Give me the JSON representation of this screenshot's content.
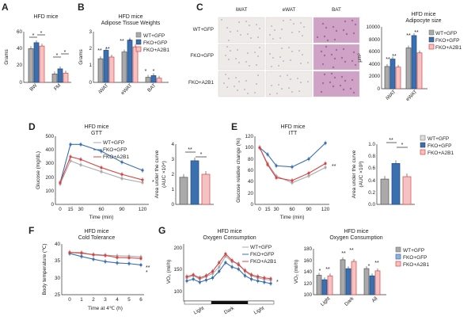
{
  "figure": {
    "panel_labels": [
      "A",
      "B",
      "C",
      "D",
      "E",
      "F",
      "G"
    ],
    "colors": {
      "wt": "#aaaaaa",
      "fko": "#3a6fb0",
      "a2b1": "#d64545",
      "tissue_pink": "#cfa3c6",
      "tissue_pale": "#eeeae8"
    },
    "sig": {
      "one": "*",
      "two": "**"
    },
    "sig_labels": {
      "star": "*",
      "dstar": "**"
    }
  },
  "legend": {
    "wt": "WT+GFP",
    "fko": "FKO+GFP",
    "a2b1": "FKO+A2B1"
  },
  "panelA": {
    "title": "HFD mice",
    "ylabel": "Grams",
    "yticks": [
      "0",
      "20",
      "40",
      "60"
    ]
  },
  "panelB": {
    "title": "HFD mice",
    "subtitle": "Adipose Tissue Weights",
    "ylabel": "Grams",
    "yticks": [
      "0",
      "1",
      "2",
      "3"
    ]
  },
  "panelC": {
    "col_labels": [
      "iWAT",
      "eWAT",
      "BAT"
    ],
    "row_labels": [
      "WT+GFP",
      "FKO+GFP",
      "FKO+A2B1"
    ],
    "chart_title": "HFD mice",
    "chart_subtitle": "Adipocyte size",
    "ylabel": "μm²",
    "yticks": [
      "0",
      "2000",
      "4000",
      "6000",
      "8000",
      "10000"
    ]
  },
  "panelD": {
    "title": "HFD mice",
    "subtitle": "GTT",
    "ylabel": "Glucose (mg/dL)",
    "xlabel": "Time (min)",
    "yticks": [
      "0",
      "100",
      "200",
      "300",
      "400",
      "500"
    ],
    "xticks": [
      "0",
      "15",
      "30",
      "60",
      "90",
      "120"
    ],
    "bar_ylabel": "Area under the curve",
    "bar_ylabel2": "(AUC ×10⁴)",
    "bar_yticks": [
      "0",
      "1",
      "2",
      "3",
      "4"
    ]
  },
  "panelE": {
    "title": "HFD mice",
    "subtitle": "ITT",
    "ylabel": "Glucose relative change (%)",
    "xlabel": "Time (min)",
    "yticks": [
      "0",
      "20",
      "40",
      "60",
      "80",
      "100",
      "120"
    ],
    "xticks": [
      "0",
      "15",
      "30",
      "60",
      "90",
      "120"
    ],
    "bar_ylabel": "Area under the curve",
    "bar_ylabel2": "(AUC ×10³)",
    "bar_yticks": [
      "0.0",
      "0.2",
      "0.4",
      "0.6",
      "0.8",
      "1.0"
    ]
  },
  "panelF": {
    "title": "HFD mice",
    "subtitle": "Cold Tolerance",
    "ylabel": "Body temperature (℃)",
    "xlabel": "Time at 4℃ (h)",
    "yticks": [
      "25",
      "30",
      "35",
      "40"
    ],
    "xticks": [
      "0",
      "1",
      "2",
      "3",
      "4",
      "5",
      "6"
    ]
  },
  "panelG": {
    "title": "HFD mice",
    "subtitle": "Oxygen Consumption",
    "ylabel": "VO₂ (ml/h)",
    "yticks": [
      "100",
      "150",
      "200"
    ],
    "phases": [
      "Light",
      "Dark",
      "Light"
    ],
    "bar_title": "HFD mice",
    "bar_subtitle": "Oxygen Consumption",
    "bar_ylabel": "VO₂ (ml/h)",
    "bar_yticks": [
      "100",
      "120",
      "140",
      "160",
      "180"
    ],
    "bar_categories": [
      "Light",
      "Dark",
      "All"
    ]
  },
  "chart_data": [
    {
      "type": "bar",
      "panel": "A",
      "categories": [
        "BW",
        "FM"
      ],
      "ylim": [
        0,
        60
      ],
      "series": [
        {
          "name": "WT+GFP",
          "values": [
            40,
            10
          ]
        },
        {
          "name": "FKO+GFP",
          "values": [
            47,
            16
          ]
        },
        {
          "name": "FKO+A2B1",
          "values": [
            43,
            11
          ]
        }
      ]
    },
    {
      "type": "bar",
      "panel": "B",
      "categories": [
        "iWAT",
        "eWAT",
        "BAT"
      ],
      "ylim": [
        0,
        3
      ],
      "series": [
        {
          "name": "WT+GFP",
          "values": [
            1.4,
            1.8,
            0.3
          ]
        },
        {
          "name": "FKO+GFP",
          "values": [
            1.9,
            2.5,
            0.4
          ]
        },
        {
          "name": "FKO+A2B1",
          "values": [
            1.5,
            2.1,
            0.25
          ]
        }
      ]
    },
    {
      "type": "bar",
      "panel": "C",
      "categories": [
        "iWAT",
        "eWAT"
      ],
      "ylim": [
        0,
        10000
      ],
      "series": [
        {
          "name": "WT+GFP",
          "values": [
            3600,
            6600
          ]
        },
        {
          "name": "FKO+GFP",
          "values": [
            4800,
            8600
          ]
        },
        {
          "name": "FKO+A2B1",
          "values": [
            3500,
            5800
          ]
        }
      ]
    },
    {
      "type": "line",
      "panel": "D",
      "x": [
        0,
        15,
        30,
        60,
        90,
        120
      ],
      "ylim": [
        0,
        500
      ],
      "series": [
        {
          "name": "WT+GFP",
          "values": [
            150,
            320,
            290,
            240,
            190,
            160
          ]
        },
        {
          "name": "FKO+GFP",
          "values": [
            160,
            440,
            440,
            390,
            310,
            250
          ]
        },
        {
          "name": "FKO+A2B1",
          "values": [
            160,
            350,
            330,
            270,
            220,
            180
          ]
        }
      ]
    },
    {
      "type": "bar",
      "panel": "D-AUC",
      "categories": [
        "WT+GFP",
        "FKO+GFP",
        "FKO+A2B1"
      ],
      "ylim": [
        0,
        4
      ],
      "values": [
        1.8,
        2.9,
        2.0
      ]
    },
    {
      "type": "line",
      "panel": "E",
      "x": [
        0,
        15,
        30,
        60,
        90,
        120
      ],
      "ylim": [
        0,
        120
      ],
      "series": [
        {
          "name": "WT+GFP",
          "values": [
            100,
            72,
            50,
            38,
            50,
            65
          ]
        },
        {
          "name": "FKO+GFP",
          "values": [
            100,
            88,
            68,
            66,
            80,
            108
          ]
        },
        {
          "name": "FKO+A2B1",
          "values": [
            100,
            70,
            47,
            42,
            55,
            72
          ]
        }
      ]
    },
    {
      "type": "bar",
      "panel": "E-AUC",
      "categories": [
        "WT+GFP",
        "FKO+GFP",
        "FKO+A2B1"
      ],
      "ylim": [
        0,
        1.0
      ],
      "values": [
        0.42,
        0.68,
        0.46
      ]
    },
    {
      "type": "line",
      "panel": "F",
      "x": [
        0,
        1,
        2,
        3,
        4,
        5,
        6
      ],
      "ylim": [
        25,
        40
      ],
      "series": [
        {
          "name": "WT+GFP",
          "values": [
            37.5,
            37.2,
            36.9,
            36.7,
            36.5,
            36.4,
            36.2
          ]
        },
        {
          "name": "FKO+GFP",
          "values": [
            37.2,
            36.3,
            35.5,
            34.8,
            34.4,
            34.2,
            33.8
          ]
        },
        {
          "name": "FKO+A2B1",
          "values": [
            37.5,
            37.4,
            36.8,
            36.6,
            36.0,
            35.9,
            35.7
          ]
        }
      ]
    },
    {
      "type": "line",
      "panel": "G",
      "ylim": [
        100,
        200
      ],
      "series": [
        {
          "name": "WT+GFP",
          "values": [
            135,
            140,
            132,
            138,
            145,
            160,
            185,
            172,
            168,
            150,
            140,
            135,
            132,
            130
          ]
        },
        {
          "name": "FKO+GFP",
          "values": [
            128,
            132,
            125,
            130,
            135,
            150,
            170,
            160,
            155,
            140,
            132,
            128,
            125,
            122
          ]
        },
        {
          "name": "FKO+A2B1",
          "values": [
            138,
            142,
            135,
            140,
            150,
            170,
            190,
            175,
            165,
            152,
            142,
            138,
            135,
            133
          ]
        }
      ]
    },
    {
      "type": "bar",
      "panel": "G-bar",
      "categories": [
        "Light",
        "Dark",
        "All"
      ],
      "ylim": [
        100,
        180
      ],
      "series": [
        {
          "name": "WT+GFP",
          "values": [
            135,
            163,
            147
          ]
        },
        {
          "name": "FKO+GFP",
          "values": [
            127,
            147,
            134
          ]
        },
        {
          "name": "FKO+A2B1",
          "values": [
            134,
            160,
            143
          ]
        }
      ]
    }
  ]
}
